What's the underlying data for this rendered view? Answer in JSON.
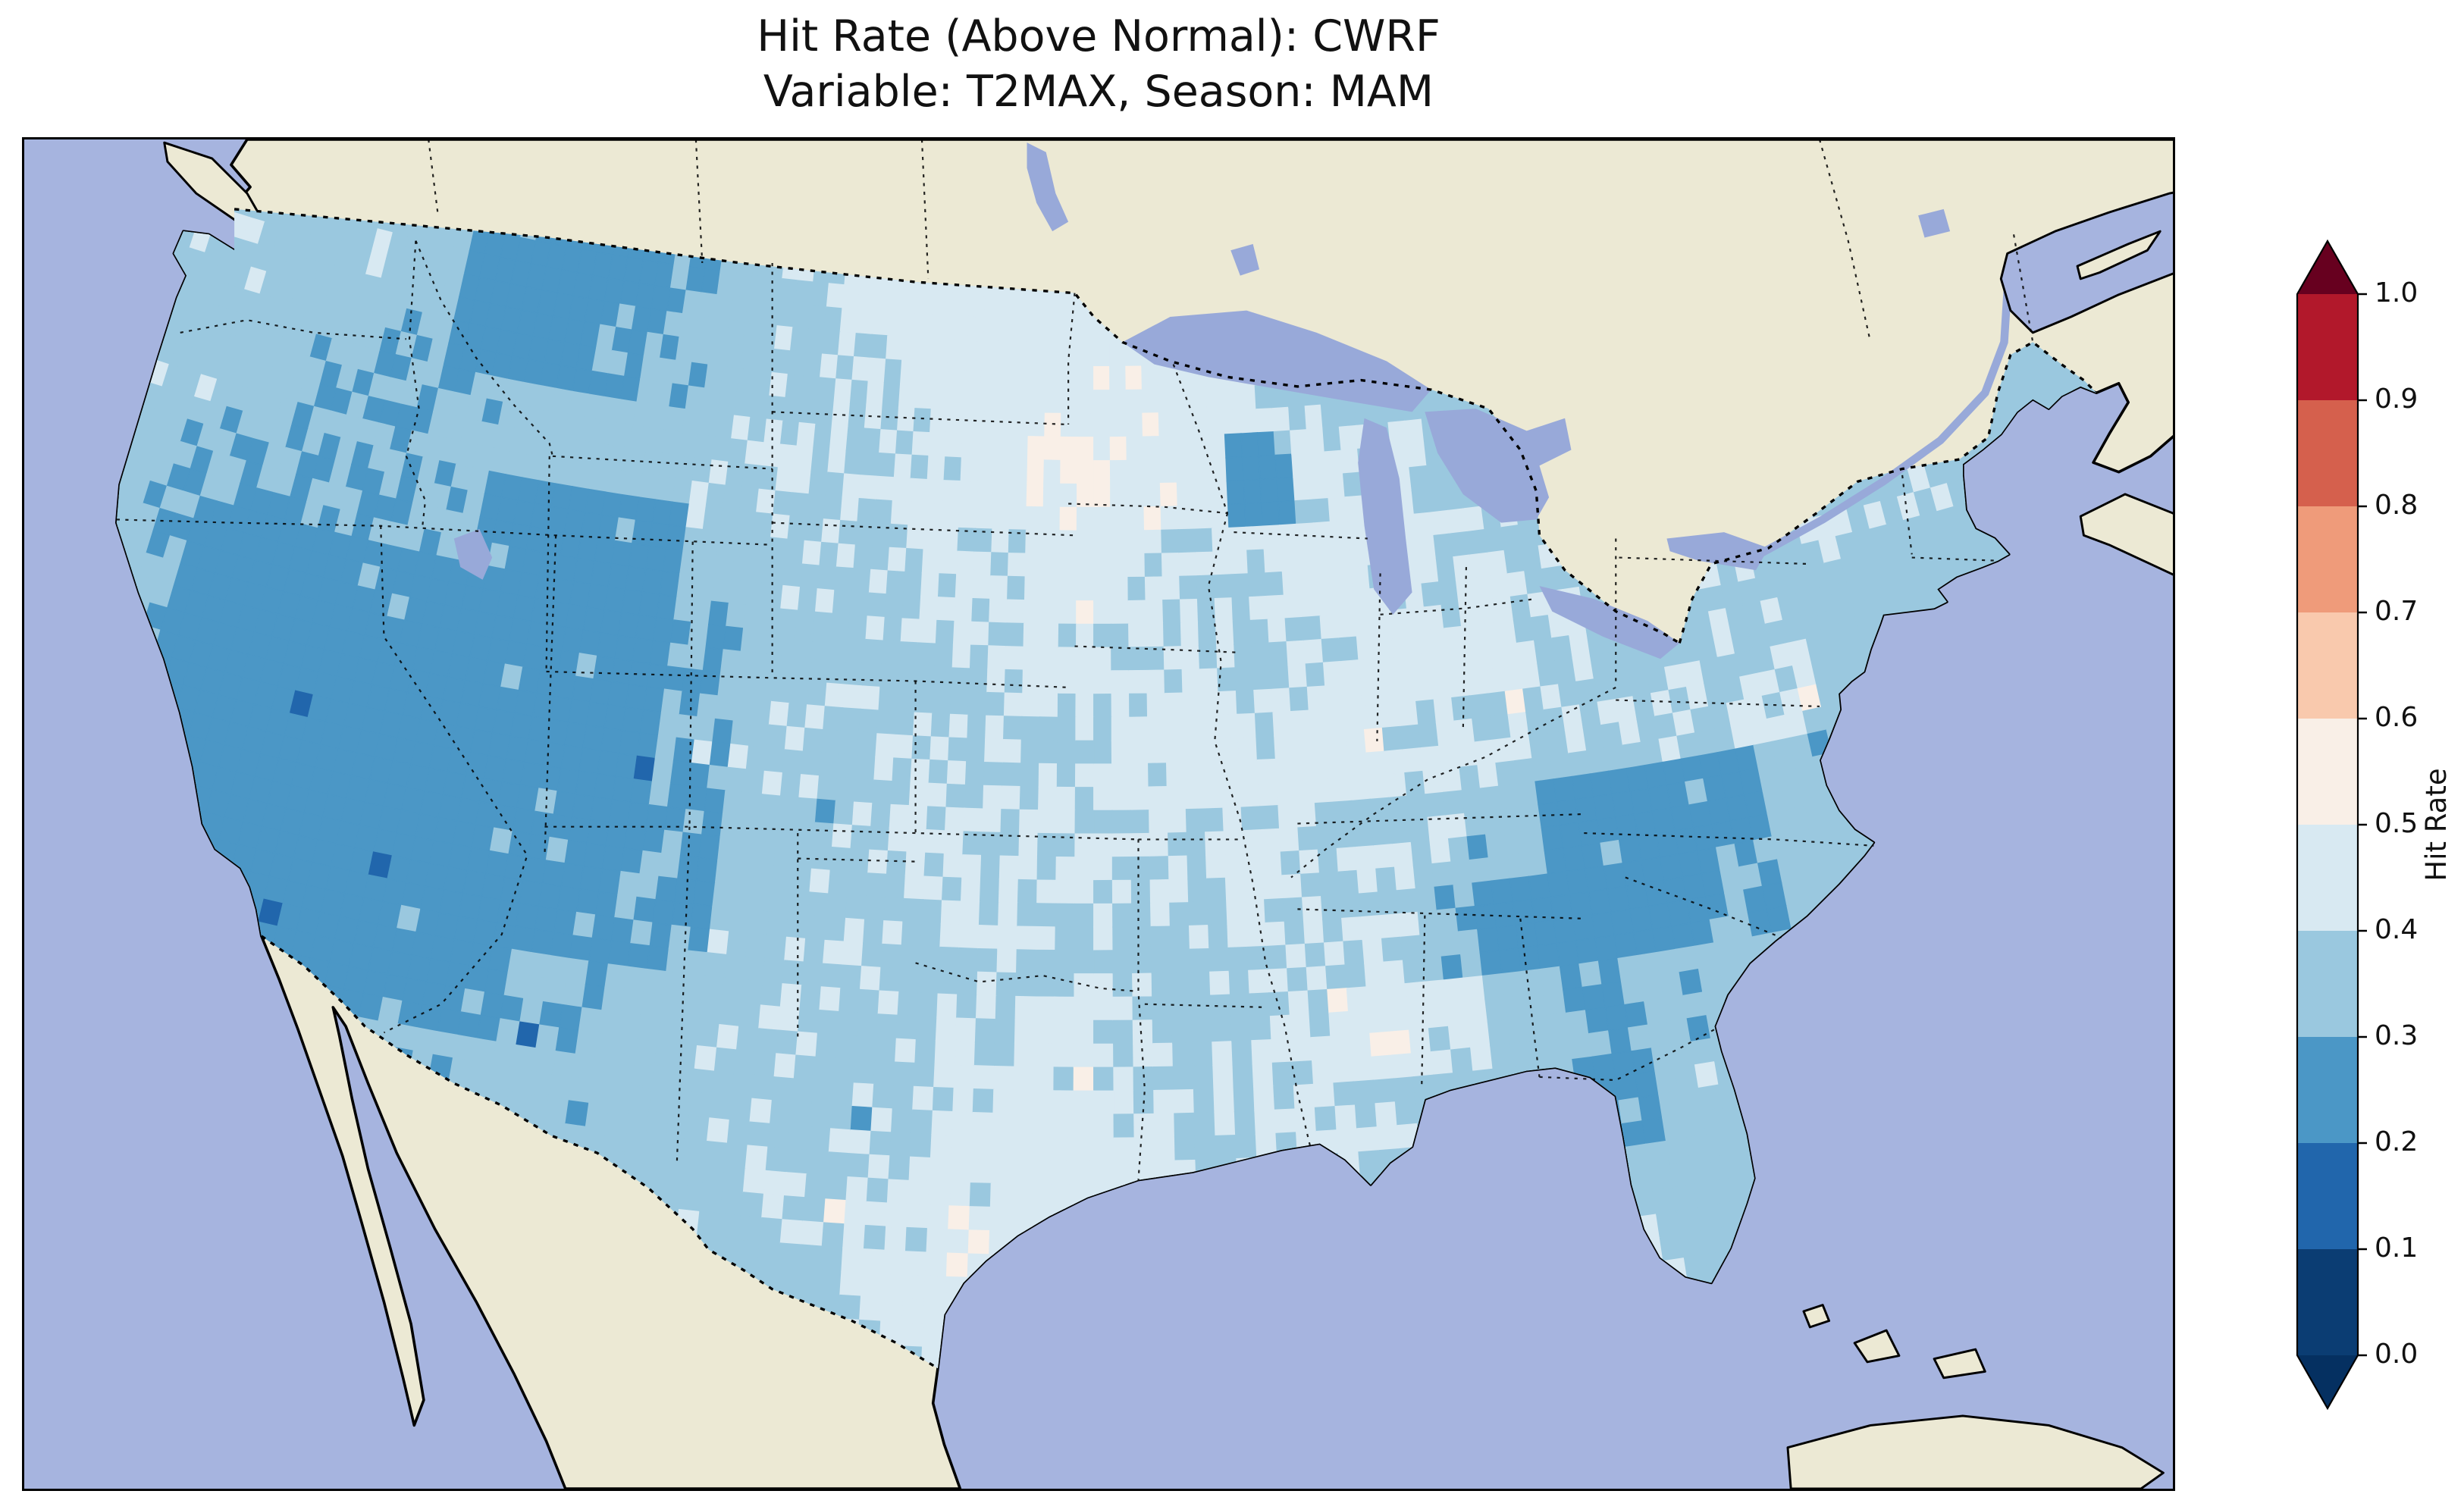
{
  "title": {
    "line1": "Hit Rate (Above Normal): CWRF",
    "line2": "Variable: T2MAX, Season: MAM"
  },
  "colorbar": {
    "label": "Hit Rate",
    "ticks": [
      "0.0",
      "0.1",
      "0.2",
      "0.3",
      "0.4",
      "0.5",
      "0.6",
      "0.7",
      "0.8",
      "0.9",
      "1.0"
    ],
    "bin_colors": [
      "#0b3d73",
      "#2166ac",
      "#4b97c6",
      "#9ac8df",
      "#d8e9f2",
      "#f9efe7",
      "#f9c9ad",
      "#ef9b7a",
      "#d5604d",
      "#b2182b"
    ],
    "under_color": "#053061",
    "over_color": "#67001f",
    "outline_color": "#000000"
  },
  "map_colors": {
    "ocean": "#a6b4df",
    "land": "#ece9d4",
    "lake": "#98a9d9",
    "coastline": "#000000",
    "basefill": "#9ac8df"
  },
  "chart_data": {
    "type": "heatmap",
    "title": "Hit Rate (Above Normal): CWRF",
    "subtitle": "Variable: T2MAX, Season: MAM",
    "metric": "Hit Rate (Above Normal)",
    "model": "CWRF",
    "variable": "T2MAX",
    "season": "MAM",
    "region": "Continental United States",
    "colormap": "RdBu_r, discrete bins of 0.1 with under/over arrows",
    "value_range": [
      0.0,
      1.0
    ],
    "bin_edges": [
      0.0,
      0.1,
      0.2,
      0.3,
      0.4,
      0.5,
      0.6,
      0.7,
      0.8,
      0.9,
      1.0
    ],
    "legend_label": "Hit Rate",
    "grid": {
      "note": "Hit-rate values estimated from map colors; 2-degree aggregation of the plotted field. null = outside CONUS data region.",
      "cell_size_deg": 2,
      "lon_centers": [
        -125,
        -123,
        -121,
        -119,
        -117,
        -115,
        -113,
        -111,
        -109,
        -107,
        -105,
        -103,
        -101,
        -99,
        -97,
        -95,
        -93,
        -91,
        -89,
        -87,
        -85,
        -83,
        -81,
        -79,
        -77,
        -75,
        -73,
        -71,
        -69,
        -67
      ],
      "lat_centers": [
        49,
        47,
        45,
        43,
        41,
        39,
        37,
        35,
        33,
        31,
        29,
        27,
        25
      ],
      "values": [
        [
          0.38,
          0.35,
          0.38,
          0.35,
          0.32,
          0.27,
          0.25,
          0.25,
          0.28,
          0.32,
          0.38,
          0.42,
          0.45,
          0.45,
          0.47,
          0.45,
          0.44,
          null,
          null,
          null,
          null,
          null,
          null,
          null,
          null,
          null,
          null,
          null,
          null,
          null
        ],
        [
          0.42,
          0.38,
          0.35,
          0.34,
          0.32,
          0.25,
          0.25,
          0.28,
          0.32,
          0.35,
          0.38,
          0.4,
          0.42,
          0.45,
          0.48,
          0.47,
          0.45,
          0.42,
          0.38,
          null,
          null,
          null,
          null,
          null,
          null,
          null,
          null,
          null,
          0.35,
          null
        ],
        [
          0.38,
          0.35,
          0.34,
          0.32,
          0.3,
          0.32,
          0.35,
          0.35,
          0.35,
          0.38,
          0.4,
          0.4,
          0.42,
          0.45,
          0.5,
          0.48,
          0.45,
          0.27,
          0.42,
          0.4,
          null,
          null,
          null,
          null,
          null,
          0.38,
          0.38,
          0.36,
          0.35,
          null
        ],
        [
          0.35,
          0.32,
          0.32,
          0.3,
          0.28,
          0.3,
          0.25,
          0.25,
          0.28,
          0.35,
          0.38,
          0.38,
          0.4,
          0.42,
          0.45,
          0.42,
          0.4,
          0.42,
          0.45,
          0.42,
          0.4,
          0.38,
          0.38,
          0.35,
          0.38,
          0.4,
          0.38,
          0.38,
          0.35,
          null
        ],
        [
          0.35,
          0.32,
          0.27,
          0.25,
          0.25,
          0.27,
          0.25,
          0.27,
          0.25,
          0.3,
          0.35,
          0.38,
          0.38,
          0.4,
          0.42,
          0.4,
          0.42,
          0.4,
          0.42,
          0.45,
          0.42,
          0.4,
          0.38,
          0.38,
          0.38,
          0.38,
          null,
          null,
          null,
          null
        ],
        [
          0.38,
          0.32,
          0.25,
          0.25,
          0.25,
          0.25,
          0.27,
          0.25,
          0.25,
          0.32,
          0.38,
          0.38,
          0.4,
          0.4,
          0.38,
          0.42,
          0.45,
          0.42,
          0.45,
          0.42,
          0.4,
          0.38,
          0.38,
          0.38,
          0.4,
          null,
          null,
          null,
          null,
          null
        ],
        [
          0.38,
          0.35,
          0.27,
          0.25,
          0.25,
          0.25,
          0.25,
          0.27,
          0.25,
          0.28,
          0.35,
          0.38,
          0.4,
          0.4,
          0.42,
          0.4,
          0.4,
          0.42,
          0.4,
          0.38,
          0.35,
          0.27,
          0.25,
          0.28,
          0.35,
          null,
          null,
          null,
          null,
          null
        ],
        [
          null,
          0.35,
          0.32,
          0.25,
          0.25,
          0.25,
          0.25,
          0.25,
          0.28,
          0.3,
          0.35,
          0.38,
          0.38,
          0.4,
          0.38,
          0.4,
          0.38,
          0.4,
          0.38,
          0.32,
          0.25,
          0.25,
          0.25,
          0.3,
          null,
          null,
          null,
          null,
          null,
          null
        ],
        [
          null,
          null,
          0.32,
          0.28,
          0.25,
          0.25,
          0.28,
          0.3,
          0.32,
          0.35,
          0.38,
          0.38,
          0.38,
          0.4,
          0.42,
          0.4,
          0.38,
          0.4,
          0.48,
          0.42,
          0.35,
          0.3,
          0.32,
          null,
          null,
          null,
          null,
          null,
          null,
          null
        ],
        [
          null,
          null,
          null,
          null,
          null,
          null,
          0.32,
          0.33,
          0.35,
          0.35,
          0.38,
          0.38,
          0.4,
          0.42,
          0.45,
          0.42,
          0.4,
          0.42,
          0.4,
          0.38,
          0.35,
          0.27,
          0.35,
          null,
          null,
          null,
          null,
          null,
          null,
          null
        ],
        [
          null,
          null,
          null,
          null,
          null,
          null,
          null,
          null,
          null,
          null,
          0.38,
          0.4,
          0.42,
          0.48,
          0.45,
          0.42,
          null,
          null,
          null,
          null,
          null,
          0.38,
          0.35,
          null,
          null,
          null,
          null,
          null,
          null,
          null
        ],
        [
          null,
          null,
          null,
          null,
          null,
          null,
          null,
          null,
          null,
          null,
          null,
          null,
          0.42,
          0.45,
          null,
          null,
          null,
          null,
          null,
          null,
          null,
          0.38,
          0.38,
          null,
          null,
          null,
          null,
          null,
          null,
          null
        ],
        [
          null,
          null,
          null,
          null,
          null,
          null,
          null,
          null,
          null,
          null,
          null,
          null,
          null,
          null,
          null,
          null,
          null,
          null,
          null,
          null,
          null,
          0.4,
          0.42,
          null,
          null,
          null,
          null,
          null,
          null,
          null
        ]
      ]
    }
  }
}
